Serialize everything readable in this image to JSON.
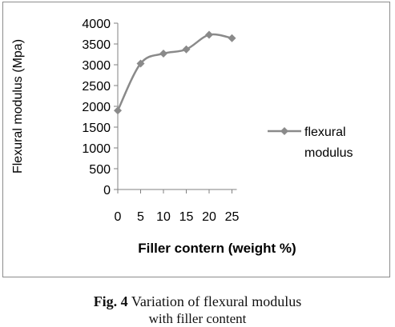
{
  "chart_data": {
    "type": "line",
    "x": [
      0,
      5,
      10,
      15,
      20,
      25
    ],
    "x_tick_labels": [
      "0",
      "5",
      "10",
      "15",
      "20",
      "25"
    ],
    "series": [
      {
        "name": "flexural modulus",
        "values": [
          1900,
          3030,
          3270,
          3370,
          3720,
          3640
        ],
        "color": "#8a8a8a"
      }
    ],
    "xlabel": "Filler contern (weight %)",
    "ylabel": "Flexural modulus (Mpa)",
    "ylim": [
      0,
      4000
    ],
    "y_ticks": [
      0,
      500,
      1000,
      1500,
      2000,
      2500,
      3000,
      3500,
      4000
    ],
    "y_tick_labels": [
      "0",
      "500",
      "1000",
      "1500",
      "2000",
      "2500",
      "3000",
      "3500",
      "4000"
    ],
    "grid": false,
    "legend_position": "right",
    "legend_label_lines": [
      "flexural",
      "modulus"
    ],
    "marker": "diamond"
  },
  "caption": {
    "fig_label": "Fig. 4",
    "line1_text": " Variation of flexural modulus",
    "line2_text": "with filler content"
  }
}
